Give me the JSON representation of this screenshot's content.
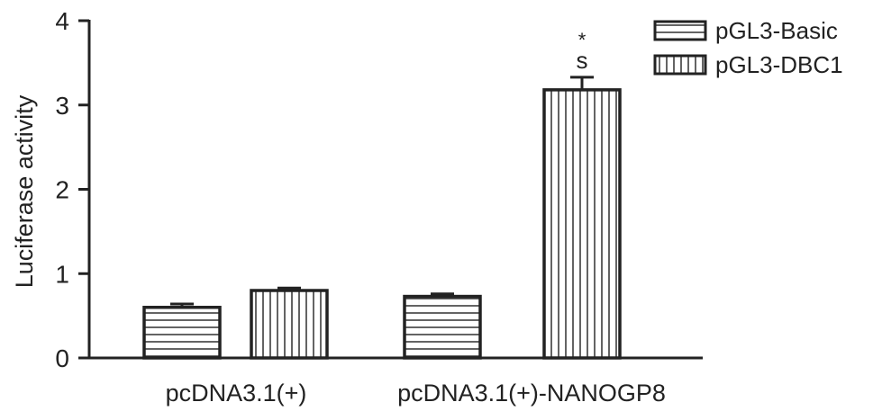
{
  "chart_data": {
    "type": "bar",
    "title": "",
    "xlabel": "",
    "ylabel": "Luciferase activity",
    "ylim": [
      0,
      4
    ],
    "yticks": [
      0,
      1,
      2,
      3,
      4
    ],
    "categories": [
      "pcDNA3.1(+)",
      "pcDNA3.1(+)-NANOGP8"
    ],
    "series": [
      {
        "name": "pGL3-Basic",
        "pattern": "horizontal-stripes",
        "values": [
          0.6,
          0.73
        ],
        "errors": [
          0.04,
          0.03
        ]
      },
      {
        "name": "pGL3-DBC1",
        "pattern": "vertical-stripes",
        "values": [
          0.8,
          3.18
        ],
        "errors": [
          0.03,
          0.15
        ]
      }
    ],
    "annotations": [
      {
        "category_index": 1,
        "series_index": 1,
        "lines": [
          "*",
          "s"
        ]
      }
    ],
    "legend_position": "top-right",
    "grid": false,
    "colors": {
      "stroke": "#222222",
      "background": "#ffffff"
    }
  }
}
